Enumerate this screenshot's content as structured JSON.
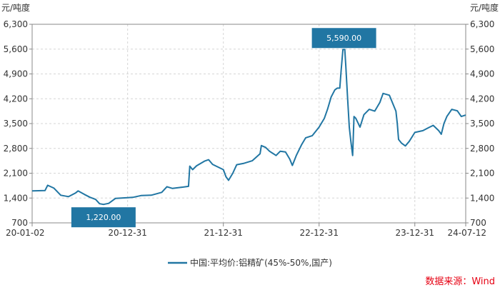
{
  "chart_data": {
    "type": "line",
    "y_unit_left": "元/吨度",
    "y_unit_right": "元/吨度",
    "ylim": [
      700,
      6300
    ],
    "y_ticks": [
      700,
      1400,
      2100,
      2800,
      3500,
      4200,
      4900,
      5600,
      6300
    ],
    "y_tick_labels": [
      "700",
      "1,400",
      "2,100",
      "2,800",
      "3,500",
      "4,200",
      "4,900",
      "5,600",
      "6,300"
    ],
    "x_range": [
      "2020-01-02",
      "2024-07-12"
    ],
    "x_ticks": [
      "2020-01-02",
      "2020-12-31",
      "2021-12-31",
      "2022-12-31",
      "2023-12-31",
      "2024-07-12"
    ],
    "x_tick_labels": [
      "20-01-02",
      "20-12-31",
      "21-12-31",
      "22-12-31",
      "23-12-31",
      "24-07-12"
    ],
    "grid": true,
    "legend_position": "bottom",
    "series": [
      {
        "name": "中国:平均价:铝精矿(45%-50%,国产)",
        "color": "#2176a3",
        "points": [
          [
            "2020-01-02",
            1600
          ],
          [
            "2020-02-20",
            1610
          ],
          [
            "2020-03-01",
            1760
          ],
          [
            "2020-03-25",
            1680
          ],
          [
            "2020-04-20",
            1480
          ],
          [
            "2020-05-20",
            1440
          ],
          [
            "2020-06-15",
            1540
          ],
          [
            "2020-06-25",
            1600
          ],
          [
            "2020-07-20",
            1500
          ],
          [
            "2020-08-10",
            1420
          ],
          [
            "2020-08-31",
            1360
          ],
          [
            "2020-09-15",
            1240
          ],
          [
            "2020-09-30",
            1220
          ],
          [
            "2020-10-20",
            1250
          ],
          [
            "2020-11-15",
            1390
          ],
          [
            "2020-12-31",
            1410
          ],
          [
            "2021-01-20",
            1420
          ],
          [
            "2021-02-20",
            1470
          ],
          [
            "2021-03-31",
            1480
          ],
          [
            "2021-05-10",
            1560
          ],
          [
            "2021-05-30",
            1720
          ],
          [
            "2021-06-20",
            1670
          ],
          [
            "2021-07-20",
            1700
          ],
          [
            "2021-08-20",
            1730
          ],
          [
            "2021-08-25",
            2300
          ],
          [
            "2021-09-05",
            2200
          ],
          [
            "2021-09-20",
            2310
          ],
          [
            "2021-10-20",
            2440
          ],
          [
            "2021-11-05",
            2480
          ],
          [
            "2021-11-20",
            2350
          ],
          [
            "2021-12-31",
            2200
          ],
          [
            "2022-01-10",
            2000
          ],
          [
            "2022-01-20",
            1900
          ],
          [
            "2022-02-05",
            2100
          ],
          [
            "2022-02-20",
            2340
          ],
          [
            "2022-03-20",
            2380
          ],
          [
            "2022-04-20",
            2450
          ],
          [
            "2022-05-20",
            2650
          ],
          [
            "2022-05-25",
            2880
          ],
          [
            "2022-06-10",
            2830
          ],
          [
            "2022-06-25",
            2720
          ],
          [
            "2022-07-20",
            2600
          ],
          [
            "2022-08-05",
            2720
          ],
          [
            "2022-08-25",
            2700
          ],
          [
            "2022-09-10",
            2500
          ],
          [
            "2022-09-20",
            2320
          ],
          [
            "2022-10-05",
            2600
          ],
          [
            "2022-10-25",
            2900
          ],
          [
            "2022-11-10",
            3100
          ],
          [
            "2022-12-05",
            3160
          ],
          [
            "2022-12-31",
            3400
          ],
          [
            "2023-01-20",
            3650
          ],
          [
            "2023-02-01",
            3900
          ],
          [
            "2023-02-15",
            4250
          ],
          [
            "2023-03-01",
            4450
          ],
          [
            "2023-03-10",
            4500
          ],
          [
            "2023-03-20",
            4500
          ],
          [
            "2023-03-25",
            5000
          ],
          [
            "2023-04-01",
            5590
          ],
          [
            "2023-04-08",
            5590
          ],
          [
            "2023-04-12",
            5100
          ],
          [
            "2023-04-18",
            4300
          ],
          [
            "2023-04-25",
            3400
          ],
          [
            "2023-05-01",
            3000
          ],
          [
            "2023-05-08",
            2600
          ],
          [
            "2023-05-13",
            3700
          ],
          [
            "2023-05-20",
            3650
          ],
          [
            "2023-06-05",
            3400
          ],
          [
            "2023-06-20",
            3750
          ],
          [
            "2023-07-10",
            3900
          ],
          [
            "2023-07-31",
            3850
          ],
          [
            "2023-08-20",
            4100
          ],
          [
            "2023-09-01",
            4350
          ],
          [
            "2023-09-25",
            4300
          ],
          [
            "2023-10-20",
            3850
          ],
          [
            "2023-10-25",
            3500
          ],
          [
            "2023-10-30",
            3050
          ],
          [
            "2023-11-10",
            2950
          ],
          [
            "2023-11-25",
            2870
          ],
          [
            "2023-12-10",
            3000
          ],
          [
            "2023-12-31",
            3250
          ],
          [
            "2024-01-31",
            3300
          ],
          [
            "2024-02-20",
            3380
          ],
          [
            "2024-03-10",
            3450
          ],
          [
            "2024-03-31",
            3300
          ],
          [
            "2024-04-10",
            3200
          ],
          [
            "2024-04-20",
            3500
          ],
          [
            "2024-05-01",
            3700
          ],
          [
            "2024-05-20",
            3900
          ],
          [
            "2024-06-10",
            3860
          ],
          [
            "2024-06-25",
            3700
          ],
          [
            "2024-07-12",
            3740
          ]
        ]
      }
    ],
    "annotations": [
      {
        "label": "5,590.00",
        "x": "2023-04-05",
        "y": 5590,
        "kind": "max"
      },
      {
        "label": "1,220.00",
        "x": "2020-09-30",
        "y": 1220,
        "kind": "min"
      }
    ]
  },
  "source_label": "数据来源：Wind"
}
